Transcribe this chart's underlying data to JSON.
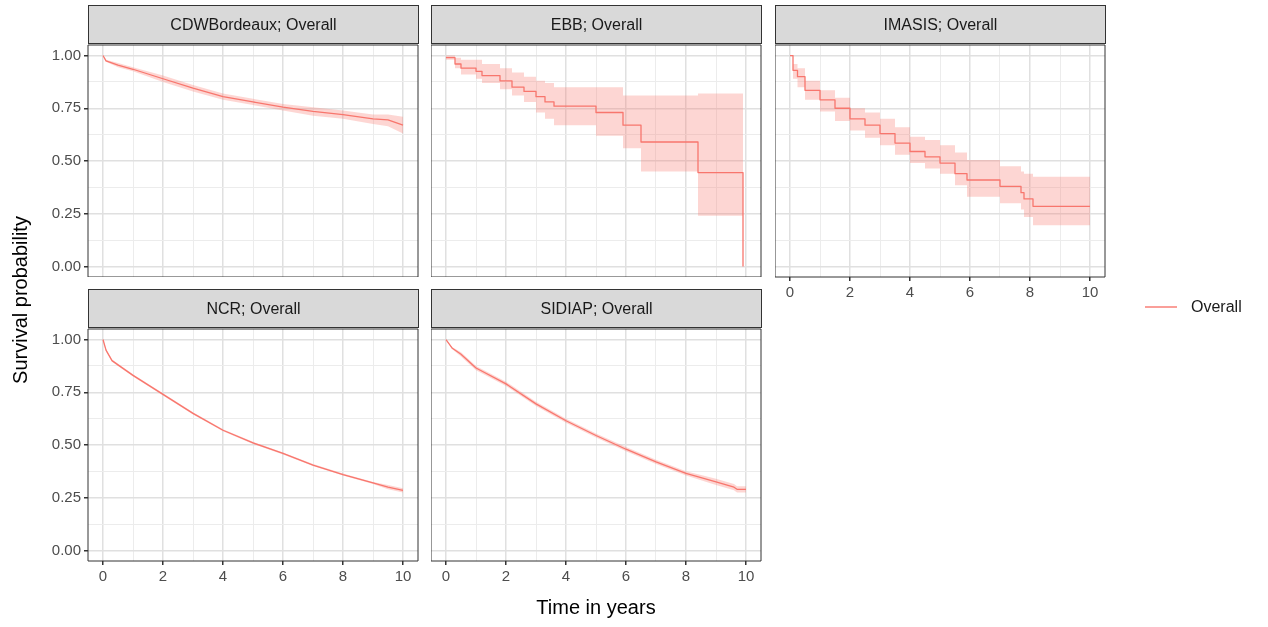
{
  "chart_data": [
    {
      "type": "line",
      "title": "CDWBordeaux; Overall",
      "ylabel": "Survival probability",
      "x": [
        0,
        0.1,
        0.5,
        1,
        2,
        3,
        4,
        5,
        6,
        7,
        8,
        9,
        9.5,
        10
      ],
      "series": [
        {
          "color": "#f8766d",
          "values": [
            1.0,
            0.975,
            0.955,
            0.935,
            0.89,
            0.845,
            0.805,
            0.78,
            0.755,
            0.735,
            0.72,
            0.7,
            0.695,
            0.67
          ],
          "lower": [
            1.0,
            0.97,
            0.945,
            0.925,
            0.875,
            0.83,
            0.79,
            0.765,
            0.74,
            0.715,
            0.7,
            0.675,
            0.665,
            0.63
          ],
          "upper": [
            1.0,
            0.98,
            0.965,
            0.945,
            0.905,
            0.86,
            0.82,
            0.795,
            0.77,
            0.755,
            0.74,
            0.72,
            0.72,
            0.71
          ]
        }
      ],
      "xlim": [
        -0.5,
        10.5
      ],
      "ylim": [
        -0.05,
        1.05
      ],
      "xticks": [
        0,
        {
          "value": 1,
          "label": null
        },
        2,
        {
          "value": 3,
          "label": null
        },
        4,
        {
          "value": 5,
          "label": null
        },
        6,
        {
          "value": 7,
          "label": null
        },
        8,
        {
          "value": 9,
          "label": null
        },
        10
      ],
      "yticks": [
        {
          "value": 0,
          "label": "0.00"
        },
        {
          "value": 0.125,
          "label": null
        },
        0.25,
        {
          "value": 0.375,
          "label": null
        },
        {
          "value": 0.5,
          "label": "0.50"
        },
        {
          "value": 0.625,
          "label": null
        },
        0.75,
        {
          "value": 0.875,
          "label": null
        },
        {
          "value": 1,
          "label": "1.00"
        }
      ],
      "grid": true,
      "tick_labels": "y"
    },
    {
      "type": "step",
      "title": "EBB; Overall",
      "x": [
        0,
        0.3,
        0.5,
        1,
        1.2,
        1.8,
        2.2,
        2.6,
        3,
        3.3,
        3.6,
        5,
        5.9,
        6.5,
        8.4,
        9.9
      ],
      "series": [
        {
          "color": "#f8766d",
          "values": [
            0.99,
            0.96,
            0.94,
            0.925,
            0.905,
            0.88,
            0.85,
            0.83,
            0.805,
            0.78,
            0.76,
            0.73,
            0.67,
            0.59,
            0.445,
            0
          ],
          "lower": [
            0.98,
            0.94,
            0.91,
            0.89,
            0.87,
            0.84,
            0.81,
            0.78,
            0.73,
            0.7,
            0.67,
            0.62,
            0.56,
            0.45,
            0.24,
            0.24
          ],
          "upper": [
            1.0,
            0.99,
            0.98,
            0.98,
            0.96,
            0.94,
            0.92,
            0.9,
            0.88,
            0.87,
            0.85,
            0.85,
            0.81,
            0.81,
            0.82,
            0.82
          ]
        }
      ],
      "xlim": [
        -0.5,
        10.5
      ],
      "ylim": [
        -0.05,
        1.05
      ],
      "xticks": [
        0,
        {
          "value": 1,
          "label": null
        },
        2,
        {
          "value": 3,
          "label": null
        },
        4,
        {
          "value": 5,
          "label": null
        },
        6,
        {
          "value": 7,
          "label": null
        },
        8,
        {
          "value": 9,
          "label": null
        },
        10
      ],
      "yticks": [
        0,
        {
          "value": 0.125,
          "label": null
        },
        0.25,
        {
          "value": 0.375,
          "label": null
        },
        0.5,
        {
          "value": 0.625,
          "label": null
        },
        0.75,
        {
          "value": 0.875,
          "label": null
        },
        1
      ],
      "grid": true,
      "tick_labels": false
    },
    {
      "type": "step",
      "title": "IMASIS; Overall",
      "legend": "right",
      "x": [
        0,
        0.1,
        0.25,
        0.5,
        1,
        1.5,
        2,
        2.5,
        3,
        3.5,
        4,
        4.5,
        5,
        5.5,
        5.9,
        7,
        7.7,
        7.8,
        8.1,
        10
      ],
      "series": [
        {
          "name": "Overall",
          "color": "#f8766d",
          "values": [
            1.0,
            0.93,
            0.9,
            0.835,
            0.79,
            0.75,
            0.7,
            0.67,
            0.63,
            0.585,
            0.545,
            0.52,
            0.49,
            0.44,
            0.41,
            0.38,
            0.35,
            0.32,
            0.285,
            0.285
          ],
          "lower": [
            1.0,
            0.89,
            0.85,
            0.79,
            0.735,
            0.69,
            0.645,
            0.61,
            0.575,
            0.53,
            0.49,
            0.465,
            0.44,
            0.385,
            0.33,
            0.3,
            0.27,
            0.235,
            0.195,
            0.195
          ],
          "upper": [
            1.0,
            0.96,
            0.94,
            0.88,
            0.835,
            0.8,
            0.75,
            0.73,
            0.7,
            0.66,
            0.615,
            0.6,
            0.575,
            0.54,
            0.505,
            0.475,
            0.45,
            0.44,
            0.425,
            0.425
          ]
        }
      ],
      "xlim": [
        -0.5,
        10.5
      ],
      "ylim": [
        -0.05,
        1.05
      ],
      "xticks": [
        0,
        {
          "value": 1,
          "label": null
        },
        2,
        {
          "value": 3,
          "label": null
        },
        4,
        {
          "value": 5,
          "label": null
        },
        6,
        {
          "value": 7,
          "label": null
        },
        8,
        {
          "value": 9,
          "label": null
        },
        10
      ],
      "yticks": [
        0,
        {
          "value": 0.125,
          "label": null
        },
        0.25,
        {
          "value": 0.375,
          "label": null
        },
        0.5,
        {
          "value": 0.625,
          "label": null
        },
        0.75,
        {
          "value": 0.875,
          "label": null
        },
        1
      ],
      "grid": true,
      "tick_labels": "x"
    },
    {
      "type": "line",
      "title": "NCR; Overall",
      "x": [
        0,
        0.1,
        0.3,
        0.5,
        1,
        2,
        3,
        4,
        5,
        6,
        7,
        8,
        9,
        9.5,
        10
      ],
      "series": [
        {
          "color": "#f8766d",
          "values": [
            1.0,
            0.95,
            0.9,
            0.88,
            0.83,
            0.74,
            0.65,
            0.57,
            0.51,
            0.46,
            0.405,
            0.36,
            0.32,
            0.3,
            0.285
          ],
          "lower": [
            1.0,
            0.945,
            0.895,
            0.875,
            0.825,
            0.735,
            0.645,
            0.565,
            0.505,
            0.455,
            0.4,
            0.355,
            0.315,
            0.29,
            0.275
          ],
          "upper": [
            1.0,
            0.955,
            0.905,
            0.885,
            0.835,
            0.745,
            0.655,
            0.575,
            0.515,
            0.465,
            0.41,
            0.365,
            0.325,
            0.31,
            0.295
          ]
        }
      ],
      "xlim": [
        -0.5,
        10.5
      ],
      "ylim": [
        -0.05,
        1.05
      ],
      "xticks": [
        0,
        {
          "value": 1,
          "label": null
        },
        2,
        {
          "value": 3,
          "label": null
        },
        4,
        {
          "value": 5,
          "label": null
        },
        6,
        {
          "value": 7,
          "label": null
        },
        8,
        {
          "value": 9,
          "label": null
        },
        10
      ],
      "yticks": [
        {
          "value": 0,
          "label": "0.00"
        },
        {
          "value": 0.125,
          "label": null
        },
        0.25,
        {
          "value": 0.375,
          "label": null
        },
        {
          "value": 0.5,
          "label": "0.50"
        },
        {
          "value": 0.625,
          "label": null
        },
        0.75,
        {
          "value": 0.875,
          "label": null
        },
        {
          "value": 1,
          "label": "1.00"
        }
      ],
      "grid": true
    },
    {
      "type": "line",
      "title": "SIDIAP; Overall",
      "xlabel": "Time in years",
      "x": [
        0,
        0.2,
        0.5,
        1,
        2,
        3,
        4,
        5,
        6,
        7,
        8,
        9,
        9.6,
        9.7,
        10
      ],
      "series": [
        {
          "color": "#f8766d",
          "values": [
            1.0,
            0.96,
            0.93,
            0.865,
            0.79,
            0.695,
            0.615,
            0.545,
            0.48,
            0.42,
            0.365,
            0.325,
            0.3,
            0.29,
            0.29
          ],
          "lower": [
            1.0,
            0.955,
            0.92,
            0.855,
            0.78,
            0.685,
            0.605,
            0.535,
            0.47,
            0.41,
            0.355,
            0.31,
            0.285,
            0.275,
            0.275
          ],
          "upper": [
            1.0,
            0.965,
            0.94,
            0.875,
            0.8,
            0.705,
            0.625,
            0.555,
            0.49,
            0.43,
            0.375,
            0.34,
            0.315,
            0.305,
            0.305
          ]
        }
      ],
      "xlim": [
        -0.5,
        10.5
      ],
      "ylim": [
        -0.05,
        1.05
      ],
      "xticks": [
        0,
        {
          "value": 1,
          "label": null
        },
        2,
        {
          "value": 3,
          "label": null
        },
        4,
        {
          "value": 5,
          "label": null
        },
        6,
        {
          "value": 7,
          "label": null
        },
        8,
        {
          "value": 9,
          "label": null
        },
        10
      ],
      "yticks": [
        0,
        {
          "value": 0.125,
          "label": null
        },
        0.25,
        {
          "value": 0.375,
          "label": null
        },
        0.5,
        {
          "value": 0.625,
          "label": null
        },
        0.75,
        {
          "value": 0.875,
          "label": null
        },
        1
      ],
      "grid": true,
      "tick_labels": "x"
    }
  ]
}
